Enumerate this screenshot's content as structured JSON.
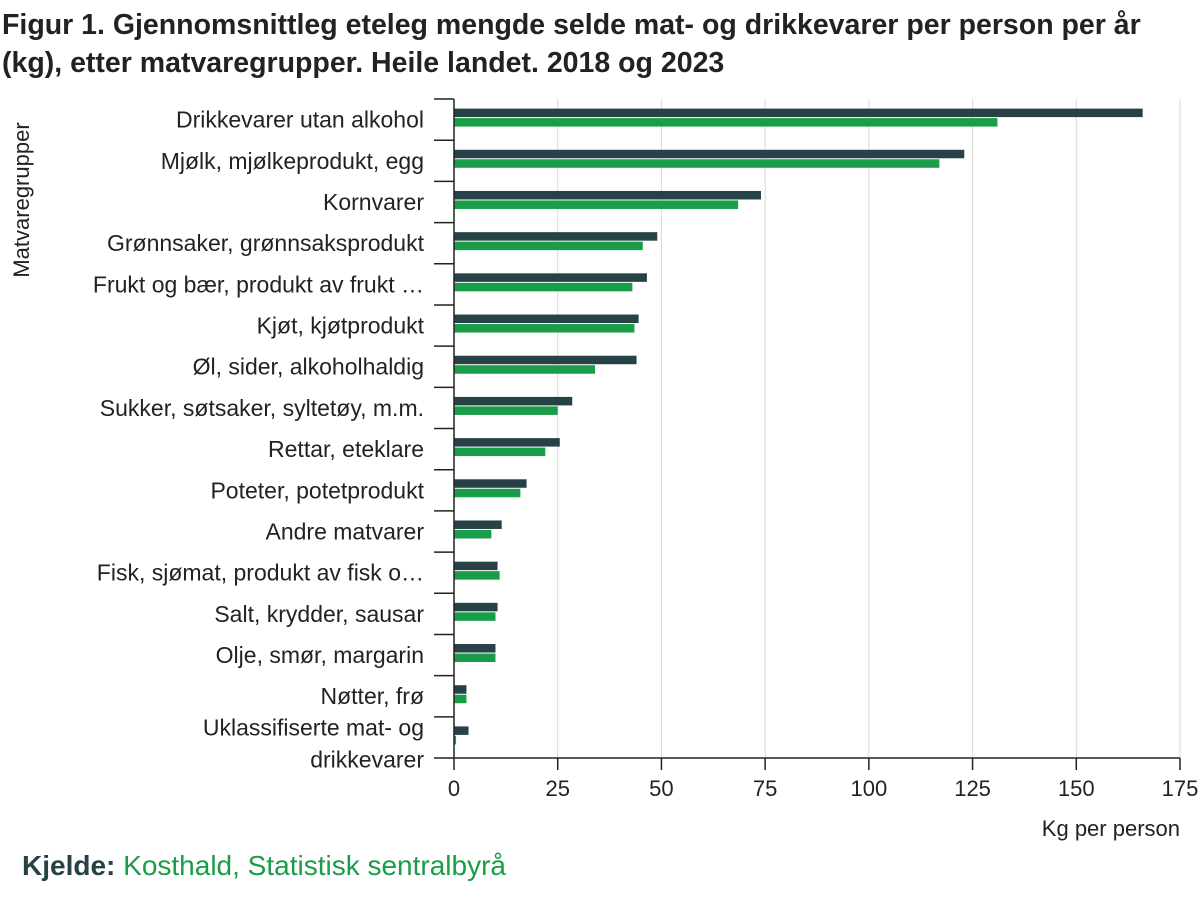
{
  "chart_data": {
    "type": "bar",
    "orientation": "horizontal",
    "title": "Figur 1. Gjennomsnittleg eteleg mengde selde mat- og drikkevarer per person per år (kg), etter matvaregrupper. Heile landet. 2018 og 2023",
    "xlabel": "Kg per person",
    "ylabel": "Matvaregrupper",
    "xlim": [
      0,
      175
    ],
    "xticks": [
      "0",
      "25",
      "50",
      "75",
      "100",
      "125",
      "150",
      "175"
    ],
    "grid": "vertical",
    "categories": [
      [
        "Drikkevarer utan alkohol"
      ],
      [
        "Mjølk, mjølkeprodukt, egg"
      ],
      [
        "Kornvarer"
      ],
      [
        "Grønnsaker, grønnsaksprodukt"
      ],
      [
        "Frukt og bær, produkt av frukt …"
      ],
      [
        "Kjøt, kjøtprodukt"
      ],
      [
        "Øl, sider, alkoholhaldig"
      ],
      [
        "Sukker, søtsaker, syltetøy, m.m."
      ],
      [
        "Rettar, eteklare"
      ],
      [
        "Poteter, potetprodukt"
      ],
      [
        "Andre matvarer"
      ],
      [
        "Fisk, sjømat, produkt av fisk o…"
      ],
      [
        "Salt, krydder, sausar"
      ],
      [
        "Olje, smør, margarin"
      ],
      [
        "Nøtter, frø"
      ],
      [
        "Uklassifiserte mat- og",
        "drikkevarer"
      ]
    ],
    "series": [
      {
        "color": "#274247",
        "values": [
          166,
          123,
          74,
          49,
          46.5,
          44.5,
          44,
          28.5,
          25.5,
          17.5,
          11.5,
          10.5,
          10.5,
          10,
          3,
          3.5
        ]
      },
      {
        "color": "#1a9d49",
        "values": [
          131,
          117,
          68.5,
          45.5,
          43,
          43.5,
          34,
          25,
          22,
          16,
          9,
          11,
          10,
          10,
          3,
          0.5
        ]
      }
    ]
  },
  "source": {
    "label": "Kjelde:",
    "text": "Kosthald, Statistisk sentralbyrå"
  }
}
